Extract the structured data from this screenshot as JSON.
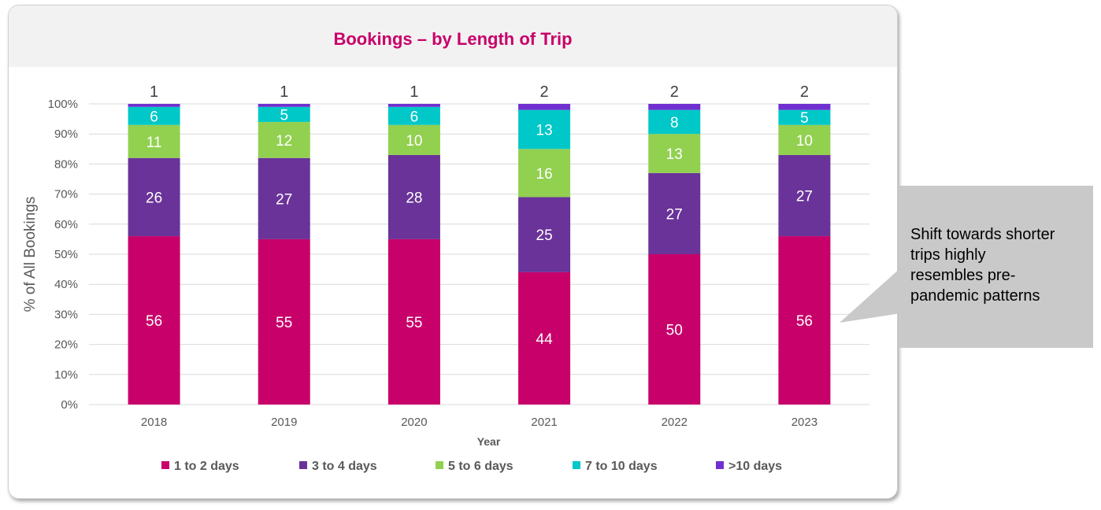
{
  "chart_data": {
    "type": "bar",
    "stacked": true,
    "title": "Bookings – by Length of Trip",
    "xlabel": "Year",
    "ylabel": "% of All Bookings",
    "ylim": [
      0,
      100
    ],
    "yticks": [
      "0%",
      "10%",
      "20%",
      "30%",
      "40%",
      "50%",
      "60%",
      "70%",
      "80%",
      "90%",
      "100%"
    ],
    "categories": [
      "2018",
      "2019",
      "2020",
      "2021",
      "2022",
      "2023"
    ],
    "grid": true,
    "legend_position": "bottom",
    "series": [
      {
        "name": "1 to 2 days",
        "color": "#c8006a",
        "values": [
          56,
          55,
          55,
          44,
          50,
          56
        ]
      },
      {
        "name": "3 to 4 days",
        "color": "#6a3399",
        "values": [
          26,
          27,
          28,
          25,
          27,
          27
        ]
      },
      {
        "name": "5 to 6 days",
        "color": "#92d050",
        "values": [
          11,
          12,
          10,
          16,
          13,
          10
        ]
      },
      {
        "name": "7 to 10 days",
        "color": "#00c8c8",
        "values": [
          6,
          5,
          6,
          13,
          8,
          5
        ]
      },
      {
        "name": ">10 days",
        "color": "#7030d0",
        "values": [
          1,
          1,
          1,
          2,
          2,
          2
        ]
      }
    ]
  },
  "callout": {
    "text": "Shift towards shorter\ntrips highly\nresembles pre-\npandemic patterns"
  }
}
